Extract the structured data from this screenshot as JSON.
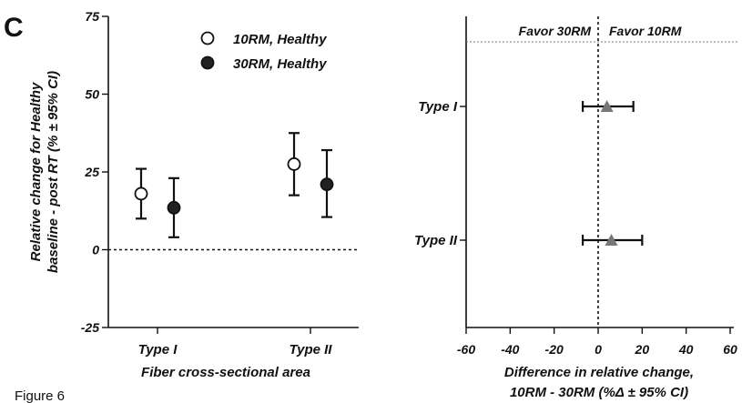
{
  "panel_letter": "C",
  "figure_label": "Figure 6",
  "chart_data": [
    {
      "type": "scatter",
      "ylabel_line1": "Relative change for Healthy",
      "ylabel_line2": "baseline - post RT (% ± 95% CI)",
      "xlabel": "Fiber cross-sectional area",
      "categories": [
        "Type I",
        "Type II"
      ],
      "ylim": [
        -25,
        75
      ],
      "yticks": [
        75,
        50,
        25,
        0,
        -25
      ],
      "legend_position": "top-right",
      "series": [
        {
          "name": "10RM, Healthy",
          "marker": "open-circle",
          "mean": [
            18,
            27.5
          ],
          "ci_low": [
            10,
            17.5
          ],
          "ci_high": [
            26,
            37.5
          ]
        },
        {
          "name": "30RM, Healthy",
          "marker": "filled-circle",
          "mean": [
            13.5,
            21
          ],
          "ci_low": [
            4,
            10.5
          ],
          "ci_high": [
            23,
            32
          ]
        }
      ],
      "reference_line_y": 0
    },
    {
      "type": "scatter",
      "orientation": "forest-plot",
      "categories": [
        "Type I",
        "Type II"
      ],
      "xlim": [
        -60,
        60
      ],
      "xticks": [
        -60,
        -40,
        -20,
        0,
        20,
        40,
        60
      ],
      "xlabel_line1": "Difference in relative change,",
      "xlabel_line2": "10RM - 30RM (%Δ ± 95% CI)",
      "favor_left": "Favor 30RM",
      "favor_right": "Favor 10RM",
      "marker_color": "#777777",
      "estimate": [
        4,
        6
      ],
      "ci_low": [
        -7,
        -7
      ],
      "ci_high": [
        16,
        20
      ],
      "reference_line_x": 0
    }
  ]
}
